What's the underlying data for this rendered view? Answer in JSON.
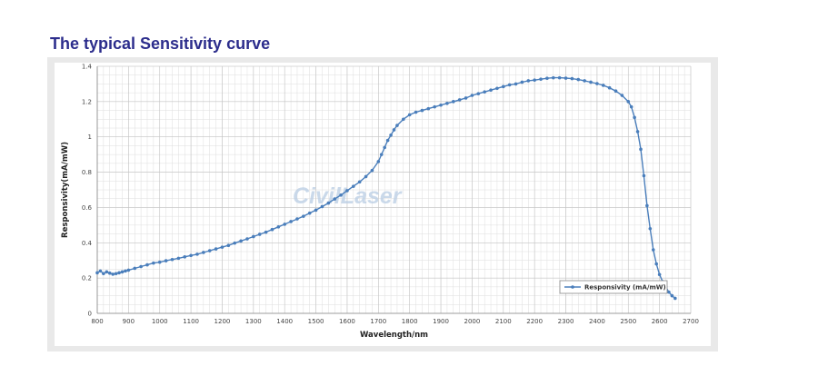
{
  "heading": "The typical Sensitivity curve",
  "watermark": "CivilLaser",
  "chart_data": {
    "type": "line",
    "title": "",
    "xlabel": "Wavelength/nm",
    "ylabel": "Responsivity(mA/mW)",
    "xlim": [
      800,
      2700
    ],
    "ylim": [
      0,
      1.4
    ],
    "xticks": [
      800,
      900,
      1000,
      1100,
      1200,
      1300,
      1400,
      1500,
      1600,
      1700,
      1800,
      1900,
      2000,
      2100,
      2200,
      2300,
      2400,
      2500,
      2600,
      2700
    ],
    "yticks": [
      0,
      0.2,
      0.4,
      0.6,
      0.8,
      1,
      1.2,
      1.4
    ],
    "ytick_labels": [
      "0",
      "0.2",
      "0.4",
      "0.6",
      "0.8",
      "1",
      "1.2",
      "1.4"
    ],
    "grid": true,
    "legend_position": "bottom-right",
    "color": "#4a7ebb",
    "series": [
      {
        "name": "Responsivity (mA/mW)",
        "x": [
          800,
          810,
          820,
          830,
          840,
          850,
          860,
          870,
          880,
          890,
          900,
          920,
          940,
          960,
          980,
          1000,
          1020,
          1040,
          1060,
          1080,
          1100,
          1120,
          1140,
          1160,
          1180,
          1200,
          1220,
          1240,
          1260,
          1280,
          1300,
          1320,
          1340,
          1360,
          1380,
          1400,
          1420,
          1440,
          1460,
          1480,
          1500,
          1520,
          1540,
          1560,
          1580,
          1600,
          1620,
          1640,
          1660,
          1680,
          1700,
          1710,
          1720,
          1730,
          1740,
          1750,
          1760,
          1780,
          1800,
          1820,
          1840,
          1860,
          1880,
          1900,
          1920,
          1940,
          1960,
          1980,
          2000,
          2020,
          2040,
          2060,
          2080,
          2100,
          2120,
          2140,
          2160,
          2180,
          2200,
          2220,
          2240,
          2260,
          2280,
          2300,
          2320,
          2340,
          2360,
          2380,
          2400,
          2420,
          2440,
          2460,
          2480,
          2500,
          2510,
          2520,
          2530,
          2540,
          2550,
          2560,
          2570,
          2580,
          2590,
          2600,
          2610,
          2620,
          2630,
          2640,
          2650
        ],
        "y": [
          0.23,
          0.24,
          0.225,
          0.235,
          0.228,
          0.222,
          0.225,
          0.23,
          0.235,
          0.24,
          0.245,
          0.255,
          0.265,
          0.275,
          0.285,
          0.29,
          0.298,
          0.305,
          0.312,
          0.32,
          0.328,
          0.335,
          0.345,
          0.355,
          0.365,
          0.375,
          0.385,
          0.398,
          0.41,
          0.422,
          0.435,
          0.448,
          0.46,
          0.475,
          0.49,
          0.505,
          0.52,
          0.535,
          0.55,
          0.568,
          0.585,
          0.605,
          0.625,
          0.648,
          0.67,
          0.695,
          0.72,
          0.745,
          0.775,
          0.81,
          0.86,
          0.9,
          0.94,
          0.98,
          1.01,
          1.04,
          1.065,
          1.1,
          1.125,
          1.14,
          1.15,
          1.16,
          1.17,
          1.18,
          1.19,
          1.2,
          1.21,
          1.22,
          1.235,
          1.245,
          1.255,
          1.265,
          1.275,
          1.285,
          1.295,
          1.3,
          1.31,
          1.318,
          1.322,
          1.327,
          1.332,
          1.335,
          1.335,
          1.333,
          1.33,
          1.325,
          1.318,
          1.31,
          1.302,
          1.292,
          1.278,
          1.26,
          1.235,
          1.2,
          1.17,
          1.11,
          1.03,
          0.93,
          0.78,
          0.61,
          0.48,
          0.36,
          0.28,
          0.22,
          0.18,
          0.15,
          0.12,
          0.1,
          0.085
        ]
      }
    ]
  }
}
